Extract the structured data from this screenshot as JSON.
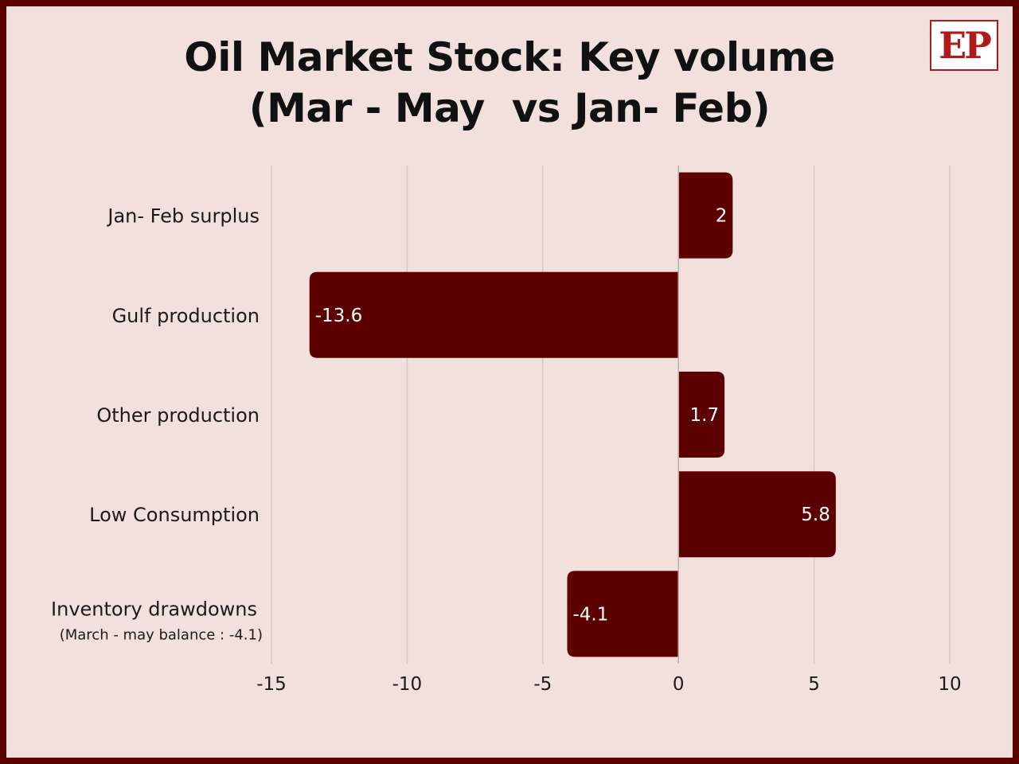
{
  "header": {
    "title_line1": "Oil Market Stock: Key volume",
    "title_line2": "(Mar - May  vs Jan- Feb)",
    "logo_text": "EP"
  },
  "colors": {
    "bar": "#5c0000",
    "background": "#f2e0dc",
    "border": "#5c0000",
    "grid": "#d3c8c4",
    "logo": "#b11a1a"
  },
  "chart_data": {
    "type": "bar",
    "orientation": "horizontal",
    "title": "Oil Market Stock: Key volume (Mar - May  vs Jan- Feb)",
    "categories": [
      "Jan- Feb surplus",
      "Gulf production",
      "Other production",
      "Low Consumption",
      "Inventory drawdowns"
    ],
    "category_sublabels": [
      "",
      "",
      "",
      "",
      "(March - may balance : -4.1)"
    ],
    "values": [
      2,
      -13.6,
      1.7,
      5.8,
      -4.1
    ],
    "data_labels": [
      "2",
      "-13.6",
      "1.7",
      "5.8",
      "-4.1"
    ],
    "xlim": [
      -15,
      10
    ],
    "xticks": [
      -15,
      -10,
      -5,
      0,
      5,
      10
    ],
    "grid": "vertical",
    "xlabel": "",
    "ylabel": ""
  }
}
